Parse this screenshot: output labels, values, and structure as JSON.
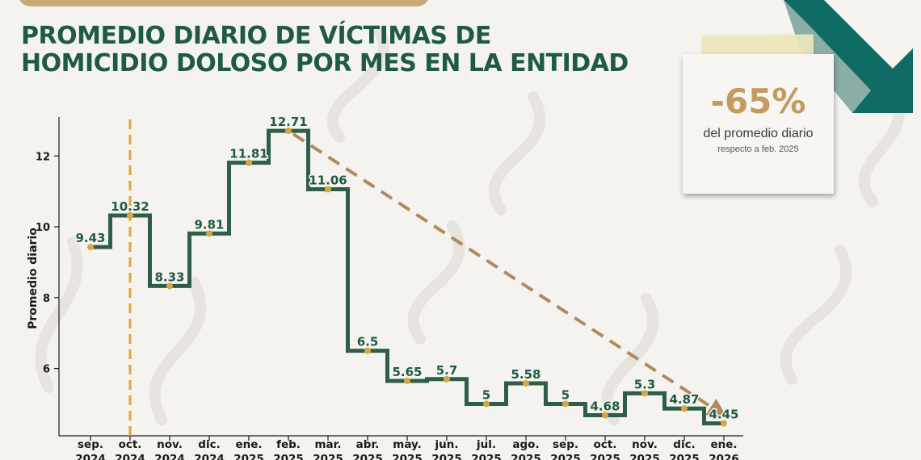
{
  "title_lines": [
    "PROMEDIO DIARIO DE VÍCTIMAS DE",
    "HOMICIDIO DOLOSO POR MES EN LA ENTIDAD"
  ],
  "colors": {
    "title": "#1f5a45",
    "step_line": "#2f5e47",
    "point": "#d4a93f",
    "vertical_marker": "#d9aa3a",
    "trend_arrow": "#b08a5e",
    "note_percent": "#c59a5f",
    "corner_arrow": "#0f6b63",
    "background": "#f4f3ef"
  },
  "note": {
    "percent": "-65%",
    "label": "del promedio diario",
    "sub": "respecto a feb. 2025"
  },
  "chart_data": {
    "type": "line",
    "step": true,
    "categories": [
      [
        "sep.",
        "2024"
      ],
      [
        "oct.",
        "2024"
      ],
      [
        "nov.",
        "2024"
      ],
      [
        "dic.",
        "2024"
      ],
      [
        "ene.",
        "2025"
      ],
      [
        "feb.",
        "2025"
      ],
      [
        "mar.",
        "2025"
      ],
      [
        "abr.",
        "2025"
      ],
      [
        "may.",
        "2025"
      ],
      [
        "jun.",
        "2025"
      ],
      [
        "jul.",
        "2025"
      ],
      [
        "ago.",
        "2025"
      ],
      [
        "sep.",
        "2025"
      ],
      [
        "oct.",
        "2025"
      ],
      [
        "nov.",
        "2025"
      ],
      [
        "dic.",
        "2025"
      ],
      [
        "ene.",
        "2026"
      ]
    ],
    "values": [
      9.43,
      10.32,
      8.33,
      9.81,
      11.81,
      12.71,
      11.06,
      6.5,
      5.65,
      5.7,
      5,
      5.58,
      5,
      4.68,
      5.3,
      4.87,
      4.45
    ],
    "data_labels": [
      "9.43",
      "10.32",
      "8.33",
      "9.81",
      "11.81",
      "12.71",
      "11.06",
      "6.5",
      "5.65",
      "5.7",
      "5",
      "5.58",
      "5",
      "4.68",
      "5.3",
      "4.87",
      "4.45"
    ],
    "ylabel": "Promedio diario",
    "yticks": [
      6,
      8,
      10,
      12
    ],
    "ylim": [
      4.1,
      13.1
    ],
    "vertical_marker_index": 1,
    "trend_from_index": 5,
    "trend_to_index": 16,
    "grid": false
  }
}
